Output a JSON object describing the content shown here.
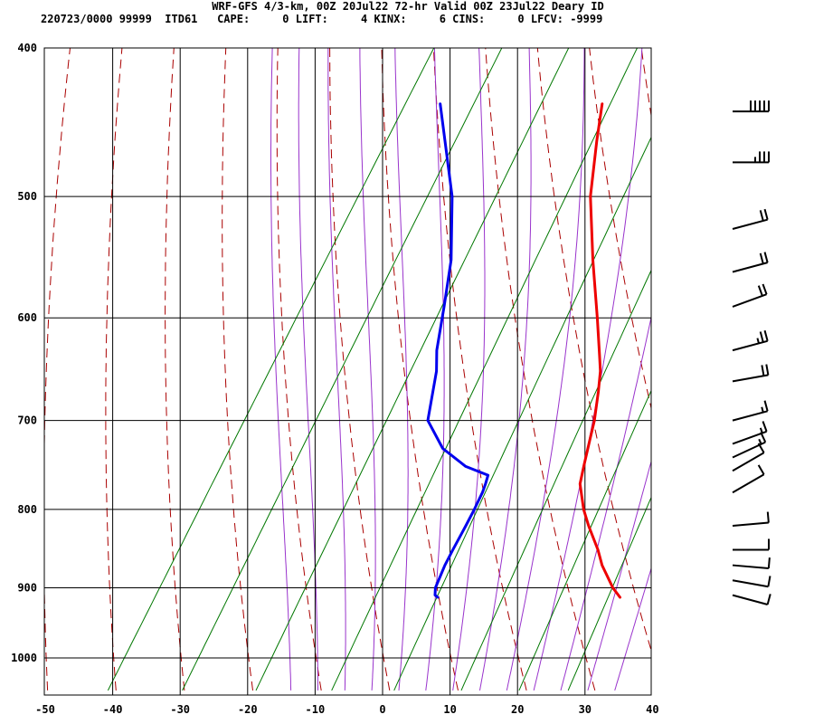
{
  "header": {
    "title": "WRF-GFS 4/3-km, 00Z 20Jul22 72-hr Valid 00Z 23Jul22 Deary ID",
    "station_line": "220723/0000 99999  ITD61   CAPE:     0 LIFT:     4 KINX:     6 CINS:     0 LFCV: -9999"
  },
  "chart_data": {
    "type": "line",
    "subtype": "skew-t log-p sounding",
    "title": "WRF-GFS 4/3-km, 00Z 20Jul22 72-hr Valid 00Z 23Jul22 Deary ID",
    "indices": {
      "CAPE": 0,
      "LIFT": 4,
      "KINX": 6,
      "CINS": 0,
      "LFCV": -9999
    },
    "xlim": [
      -50,
      40
    ],
    "x_ticks": [
      "-50",
      "-40",
      "-30",
      "-20",
      "-10",
      "0",
      "10",
      "20",
      "30",
      "40"
    ],
    "x_tick_values": [
      -50,
      -40,
      -30,
      -20,
      -10,
      0,
      10,
      20,
      30,
      40
    ],
    "y_scale": "log",
    "ylim": [
      1040,
      400
    ],
    "y_ticks": [
      "400",
      "500",
      "600",
      "700",
      "800",
      "900",
      "1000"
    ],
    "y_tick_values": [
      400,
      500,
      600,
      700,
      800,
      900,
      1000
    ],
    "grid": true,
    "background_lines": {
      "dry_adiabats": "dashed dark red",
      "moist_adiabats": "solid purple",
      "mixing_ratio_lines": "solid green"
    },
    "series": [
      {
        "color": "#ee0000",
        "values": [
          [
            913,
            26.5
          ],
          [
            900,
            24.6
          ],
          [
            870,
            21.0
          ],
          [
            850,
            19.0
          ],
          [
            820,
            15.5
          ],
          [
            800,
            13.3
          ],
          [
            770,
            10.5
          ],
          [
            750,
            9.5
          ],
          [
            720,
            8.0
          ],
          [
            700,
            7.0
          ],
          [
            670,
            5.0
          ],
          [
            650,
            3.5
          ],
          [
            635,
            2.0
          ],
          [
            600,
            -1.7
          ],
          [
            550,
            -7.5
          ],
          [
            500,
            -13.5
          ],
          [
            460,
            -17.5
          ],
          [
            435,
            -20.0
          ]
        ]
      },
      {
        "color": "#0000ee",
        "values": [
          [
            913,
            -0.5
          ],
          [
            910,
            -1.1
          ],
          [
            900,
            -1.7
          ],
          [
            870,
            -2.3
          ],
          [
            850,
            -2.5
          ],
          [
            820,
            -2.7
          ],
          [
            800,
            -2.9
          ],
          [
            780,
            -3.2
          ],
          [
            770,
            -3.5
          ],
          [
            760,
            -3.9
          ],
          [
            750,
            -8.0
          ],
          [
            730,
            -13.0
          ],
          [
            700,
            -17.7
          ],
          [
            650,
            -20.8
          ],
          [
            630,
            -22.6
          ],
          [
            590,
            -25.4
          ],
          [
            550,
            -28.5
          ],
          [
            500,
            -34.0
          ],
          [
            435,
            -44.0
          ]
        ]
      }
    ],
    "wind_barbs": [
      {
        "p": 440,
        "speed_kt": 50,
        "direction_deg": 270
      },
      {
        "p": 475,
        "speed_kt": 35,
        "direction_deg": 270
      },
      {
        "p": 525,
        "speed_kt": 20,
        "direction_deg": 255
      },
      {
        "p": 560,
        "speed_kt": 20,
        "direction_deg": 255
      },
      {
        "p": 590,
        "speed_kt": 20,
        "direction_deg": 250
      },
      {
        "p": 630,
        "speed_kt": 25,
        "direction_deg": 255
      },
      {
        "p": 660,
        "speed_kt": 20,
        "direction_deg": 260
      },
      {
        "p": 700,
        "speed_kt": 15,
        "direction_deg": 255
      },
      {
        "p": 725,
        "speed_kt": 15,
        "direction_deg": 250
      },
      {
        "p": 740,
        "speed_kt": 15,
        "direction_deg": 245
      },
      {
        "p": 755,
        "speed_kt": 10,
        "direction_deg": 240
      },
      {
        "p": 780,
        "speed_kt": 10,
        "direction_deg": 240
      },
      {
        "p": 820,
        "speed_kt": 10,
        "direction_deg": 265
      },
      {
        "p": 850,
        "speed_kt": 10,
        "direction_deg": 270
      },
      {
        "p": 870,
        "speed_kt": 10,
        "direction_deg": 275
      },
      {
        "p": 890,
        "speed_kt": 10,
        "direction_deg": 280
      },
      {
        "p": 910,
        "speed_kt": 10,
        "direction_deg": 285
      }
    ]
  }
}
